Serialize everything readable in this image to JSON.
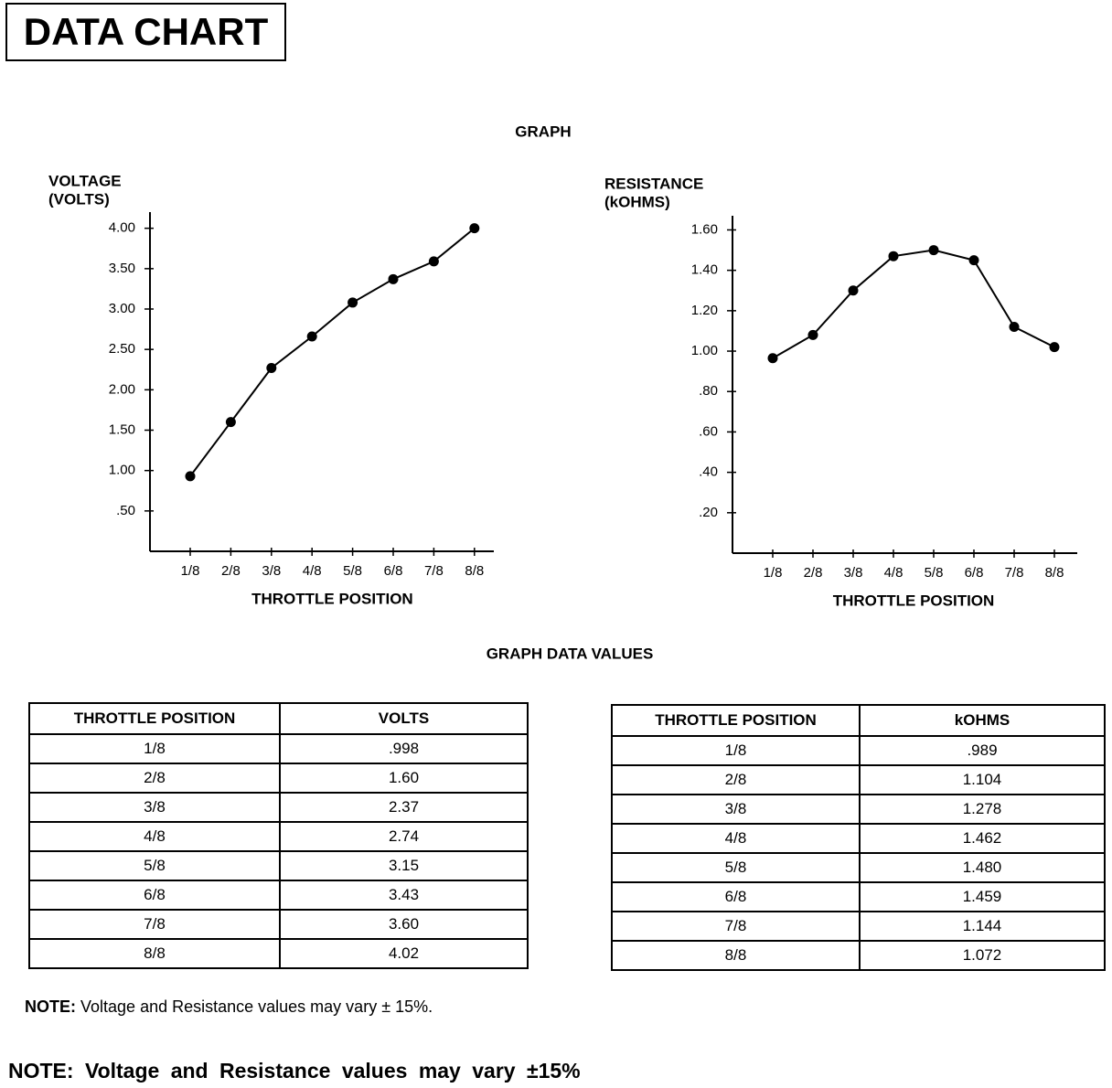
{
  "header": {
    "title": "DATA CHART"
  },
  "graph_title": "GRAPH",
  "chart_data": [
    {
      "type": "line",
      "y_label": [
        "VOLTAGE",
        "(VOLTS)"
      ],
      "x_label": "THROTTLE POSITION",
      "categories": [
        "1/8",
        "2/8",
        "3/8",
        "4/8",
        "5/8",
        "6/8",
        "7/8",
        "8/8"
      ],
      "values": [
        0.93,
        1.6,
        2.27,
        2.66,
        3.08,
        3.37,
        3.59,
        4.0
      ],
      "color": "#000000",
      "ylim": [
        0,
        4.2
      ],
      "yticks": [
        {
          "value": 0.5,
          "label": ".50"
        },
        {
          "value": 1.0,
          "label": "1.00"
        },
        {
          "value": 1.5,
          "label": "1.50"
        },
        {
          "value": 2.0,
          "label": "2.00"
        },
        {
          "value": 2.5,
          "label": "2.50"
        },
        {
          "value": 3.0,
          "label": "3.00"
        },
        {
          "value": 3.5,
          "label": "3.50"
        },
        {
          "value": 4.0,
          "label": "4.00"
        }
      ]
    },
    {
      "type": "line",
      "y_label": [
        "RESISTANCE",
        "(kOHMS)"
      ],
      "x_label": "THROTTLE POSITION",
      "categories": [
        "1/8",
        "2/8",
        "3/8",
        "4/8",
        "5/8",
        "6/8",
        "7/8",
        "8/8"
      ],
      "values": [
        0.965,
        1.08,
        1.3,
        1.47,
        1.5,
        1.45,
        1.12,
        1.02
      ],
      "color": "#000000",
      "ylim": [
        0,
        1.67
      ],
      "yticks": [
        {
          "value": 0.2,
          "label": ".20"
        },
        {
          "value": 0.4,
          "label": ".40"
        },
        {
          "value": 0.6,
          "label": ".60"
        },
        {
          "value": 0.8,
          "label": ".80"
        },
        {
          "value": 1.0,
          "label": "1.00"
        },
        {
          "value": 1.2,
          "label": "1.20"
        },
        {
          "value": 1.4,
          "label": "1.40"
        },
        {
          "value": 1.6,
          "label": "1.60"
        }
      ]
    }
  ],
  "values_title": "GRAPH DATA VALUES",
  "tables": [
    {
      "header": [
        "THROTTLE POSITION",
        "VOLTS"
      ],
      "rows": [
        [
          "1/8",
          ".998"
        ],
        [
          "2/8",
          "1.60"
        ],
        [
          "3/8",
          "2.37"
        ],
        [
          "4/8",
          "2.74"
        ],
        [
          "5/8",
          "3.15"
        ],
        [
          "6/8",
          "3.43"
        ],
        [
          "7/8",
          "3.60"
        ],
        [
          "8/8",
          "4.02"
        ]
      ]
    },
    {
      "header": [
        "THROTTLE POSITION",
        "kOHMS"
      ],
      "rows": [
        [
          "1/8",
          ".989"
        ],
        [
          "2/8",
          "1.104"
        ],
        [
          "3/8",
          "1.278"
        ],
        [
          "4/8",
          "1.462"
        ],
        [
          "5/8",
          "1.480"
        ],
        [
          "6/8",
          "1.459"
        ],
        [
          "7/8",
          "1.144"
        ],
        [
          "8/8",
          "1.072"
        ]
      ]
    }
  ],
  "note": {
    "label": "NOTE:",
    "text": "Voltage and Resistance values may vary ± 15%."
  },
  "footer_note": "NOTE: Voltage and Resistance values may vary ±15%"
}
